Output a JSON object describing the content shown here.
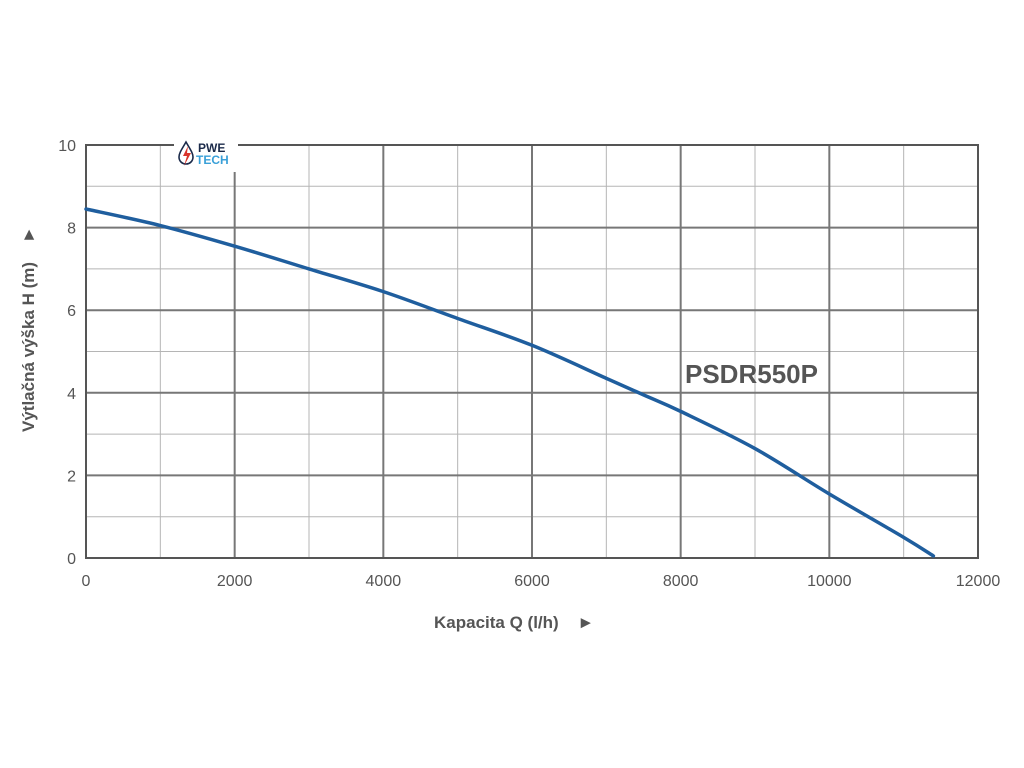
{
  "chart_data": {
    "type": "line",
    "xlabel": "Kapacita Q (l/h)",
    "ylabel": "Výtlačná výška H (m)",
    "xlim": [
      0,
      12000
    ],
    "ylim": [
      0,
      10
    ],
    "x_ticks": [
      "0",
      "2000",
      "4000",
      "6000",
      "8000",
      "10000",
      "12000"
    ],
    "y_ticks": [
      "0",
      "2",
      "4",
      "6",
      "8",
      "10"
    ],
    "grid": true,
    "series": [
      {
        "name": "PSDR550P",
        "x": [
          0,
          1000,
          2000,
          3000,
          4000,
          5000,
          6000,
          7000,
          7500,
          8000,
          9000,
          10000,
          11000,
          11400
        ],
        "y": [
          8.45,
          8.05,
          7.55,
          7.0,
          6.45,
          5.8,
          5.15,
          4.35,
          3.95,
          3.55,
          2.65,
          1.55,
          0.5,
          0.05
        ]
      }
    ],
    "line_color": "#1f5e9e",
    "grid_color": "#999999",
    "axis_color": "#555555"
  },
  "axis_arrow": "►",
  "logo": {
    "line1": "PWE",
    "line2": "TECH",
    "color1": "#1b2a4a",
    "color2": "#3aa0d8",
    "accent": "#d9342b"
  }
}
